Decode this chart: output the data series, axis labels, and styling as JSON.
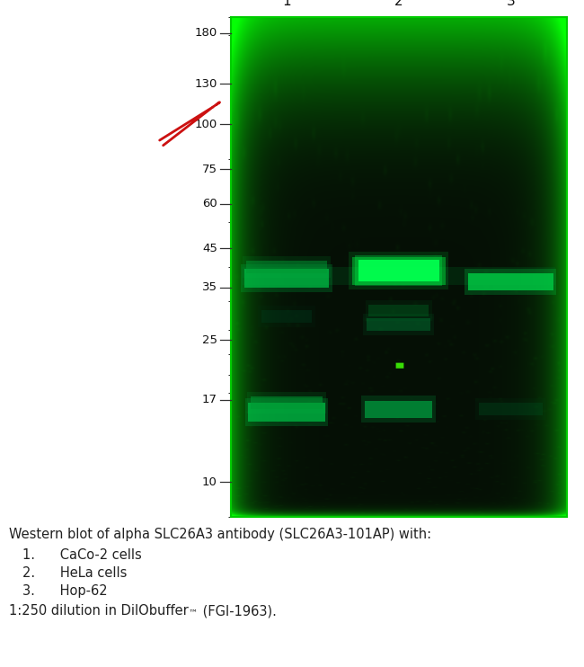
{
  "bg_color": "#ffffff",
  "blot_bg": "#0a1a0a",
  "lane_labels": [
    "1",
    "2",
    "3"
  ],
  "mw_markers": [
    180,
    130,
    100,
    75,
    60,
    45,
    35,
    25,
    17,
    10
  ],
  "arrow_color": "#cc1111",
  "caption_lines": [
    "Western blot of alpha SLC26A3 antibody (SLC26A3-101AP) with:",
    "1.      CaCo-2 cells",
    "2.      HeLa cells",
    "3.      Hop-62"
  ],
  "caption_last": "1:250 dilution in DilObuffer™ (FGI-1963).",
  "caption_fontsize": 10.5,
  "caption_color": "#222222",
  "green_edge_color": "#00cc00",
  "label_fontsize": 9.5,
  "lane_label_fontsize": 11
}
